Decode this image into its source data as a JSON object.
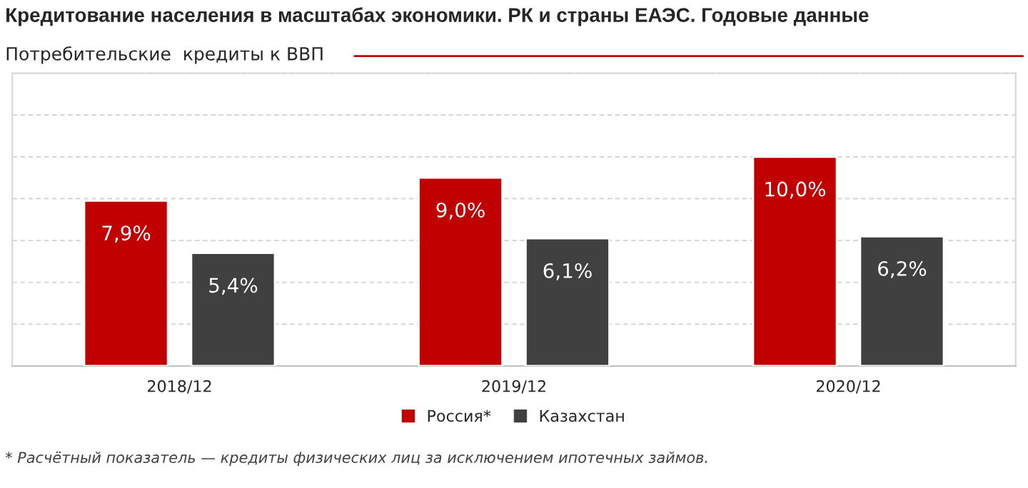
{
  "chart_data": {
    "type": "bar",
    "title": "Кредитование населения в масштабах экономики. РК и страны ЕАЭС. Годовые данные",
    "subtitle": "Потребительские  кредиты к ВВП",
    "categories": [
      "2018/12",
      "2019/12",
      "2020/12"
    ],
    "series": [
      {
        "name": "Россия*",
        "color": "#c00000",
        "values": [
          7.9,
          9.0,
          10.0
        ],
        "value_labels": [
          "7,9%",
          "9,0%",
          "10,0%"
        ]
      },
      {
        "name": "Казахстан",
        "color": "#404040",
        "values": [
          5.4,
          6.1,
          6.2
        ],
        "value_labels": [
          "5,4%",
          "6,1%",
          "6,2%"
        ]
      }
    ],
    "ylim": [
      0,
      14
    ],
    "yticks": [
      {
        "value": 0,
        "label": null
      },
      {
        "value": 2,
        "label": null
      },
      {
        "value": 4,
        "label": null
      },
      {
        "value": 6,
        "label": null
      },
      {
        "value": 8,
        "label": null
      },
      {
        "value": 10,
        "label": null
      },
      {
        "value": 12,
        "label": null
      },
      {
        "value": 14,
        "label": null
      }
    ],
    "tick_labels": "x",
    "grid": "y",
    "legend": "bottom",
    "annotations": [
      "* Расчётный показатель — кредиты физических лиц за исключением ипотечных займов."
    ]
  }
}
